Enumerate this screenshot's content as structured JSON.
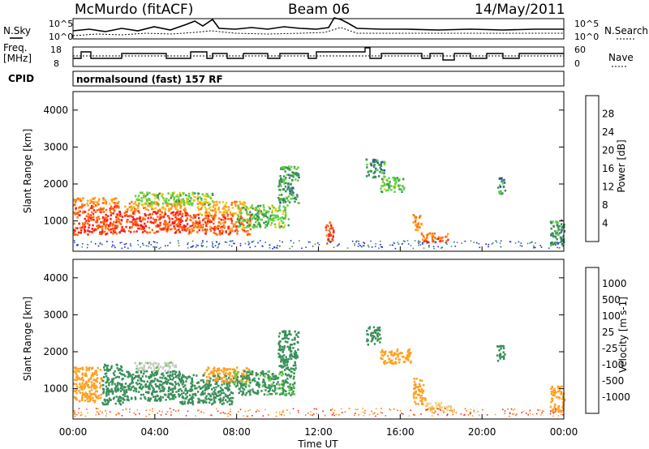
{
  "header": {
    "station": "McMurdo (fitACF)",
    "beam": "Beam 06",
    "date": "14/May/2011"
  },
  "top_panels": {
    "nsky_label": "N.Sky",
    "nsky_ticks": [
      "10^5",
      "10^0"
    ],
    "nsearch_label": "N.Search",
    "nsearch_ticks": [
      "10^5",
      "10^0"
    ],
    "freq_label_1": "Freq.",
    "freq_label_2": "[MHz]",
    "freq_ticks": [
      "18",
      "8"
    ],
    "nave_label": "Nave",
    "nave_ticks": [
      "60",
      "0"
    ],
    "cpid_label": "CPID",
    "cpid_text": "normalsound (fast) 157 RF"
  },
  "x_axis": {
    "label": "Time UT",
    "ticks": [
      "00:00",
      "04:00",
      "08:00",
      "12:00",
      "16:00",
      "20:00",
      "00:00"
    ]
  },
  "colors": {
    "power": [
      "#1a1aff",
      "#2a4fb0",
      "#3a8f5a",
      "#5fcf3f",
      "#e8d020",
      "#ffa020",
      "#ff6a10",
      "#ff1a1a"
    ],
    "velocity": [
      "#ff1a1a",
      "#ff6a10",
      "#ffa020",
      "#f0d080",
      "#c8c8c8",
      "#5fcf3f",
      "#3a8f5a",
      "#2a4fb0",
      "#1a1aff"
    ]
  },
  "chart_data": [
    {
      "type": "heatmap",
      "title": "Power",
      "ylabel": "Slant Range [km]",
      "ylim": [
        180,
        4500
      ],
      "yticks": [
        1000,
        2000,
        3000,
        4000
      ],
      "colorbar_label": "Power [dB]",
      "colorbar_ticks": [
        "4",
        "8",
        "12",
        "16",
        "20",
        "24",
        "28"
      ],
      "colorbar_range": [
        0,
        32
      ],
      "patches": [
        {
          "t0": 0.0,
          "t1": 2.2,
          "r0": 650,
          "r1": 1450,
          "v": 29
        },
        {
          "t0": 0.0,
          "t1": 2.2,
          "r0": 1450,
          "r1": 1650,
          "v": 24
        },
        {
          "t0": 2.2,
          "t1": 5.6,
          "r0": 700,
          "r1": 1300,
          "v": 30
        },
        {
          "t0": 2.5,
          "t1": 5.5,
          "r0": 1300,
          "r1": 1550,
          "v": 23
        },
        {
          "t0": 3.0,
          "t1": 6.8,
          "r0": 1450,
          "r1": 1800,
          "v": 14
        },
        {
          "t0": 5.6,
          "t1": 8.7,
          "r0": 650,
          "r1": 1200,
          "v": 28
        },
        {
          "t0": 6.0,
          "t1": 8.4,
          "r0": 1200,
          "r1": 1550,
          "v": 22
        },
        {
          "t0": 8.0,
          "t1": 10.5,
          "r0": 850,
          "r1": 1450,
          "v": 13
        },
        {
          "t0": 10.0,
          "t1": 11.0,
          "r0": 1500,
          "r1": 2500,
          "v": 10
        },
        {
          "t0": 12.3,
          "t1": 12.7,
          "r0": 400,
          "r1": 1000,
          "v": 28
        },
        {
          "t0": 14.3,
          "t1": 15.2,
          "r0": 2200,
          "r1": 2700,
          "v": 9
        },
        {
          "t0": 15.0,
          "t1": 16.2,
          "r0": 1800,
          "r1": 2200,
          "v": 13
        },
        {
          "t0": 16.6,
          "t1": 17.0,
          "r0": 700,
          "r1": 1200,
          "v": 25
        },
        {
          "t0": 17.0,
          "t1": 18.3,
          "r0": 450,
          "r1": 700,
          "v": 27
        },
        {
          "t0": 20.7,
          "t1": 21.1,
          "r0": 1750,
          "r1": 2200,
          "v": 9
        },
        {
          "t0": 23.3,
          "t1": 24.0,
          "r0": 350,
          "r1": 1100,
          "v": 9
        }
      ]
    },
    {
      "type": "heatmap",
      "title": "Velocity",
      "ylabel": "Slant Range [km]",
      "ylim": [
        180,
        4500
      ],
      "yticks": [
        1000,
        2000,
        3000,
        4000
      ],
      "colorbar_label": "Velocity [m s-1]",
      "colorbar_ticks": [
        "1000",
        "500",
        "100",
        "25",
        "-25",
        "-100",
        "-500",
        "-1000"
      ],
      "patches": [
        {
          "t0": 0.0,
          "t1": 1.4,
          "r0": 650,
          "r1": 1600,
          "v": -300
        },
        {
          "t0": 1.4,
          "t1": 2.4,
          "r0": 600,
          "r1": 1700,
          "v": 150
        },
        {
          "t0": 2.4,
          "t1": 5.2,
          "r0": 700,
          "r1": 1500,
          "v": 200
        },
        {
          "t0": 3.0,
          "t1": 5.0,
          "r0": 1500,
          "r1": 1750,
          "v": 10
        },
        {
          "t0": 5.2,
          "t1": 7.8,
          "r0": 600,
          "r1": 1400,
          "v": 180
        },
        {
          "t0": 6.4,
          "t1": 8.6,
          "r0": 1200,
          "r1": 1600,
          "v": -250
        },
        {
          "t0": 7.8,
          "t1": 10.8,
          "r0": 850,
          "r1": 1500,
          "v": 120
        },
        {
          "t0": 10.0,
          "t1": 11.0,
          "r0": 1500,
          "r1": 2600,
          "v": 200
        },
        {
          "t0": 14.3,
          "t1": 15.0,
          "r0": 2200,
          "r1": 2700,
          "v": 300
        },
        {
          "t0": 15.0,
          "t1": 16.5,
          "r0": 1700,
          "r1": 2100,
          "v": -300
        },
        {
          "t0": 16.6,
          "t1": 17.2,
          "r0": 600,
          "r1": 1300,
          "v": -300
        },
        {
          "t0": 17.2,
          "t1": 18.6,
          "r0": 400,
          "r1": 650,
          "v": -80
        },
        {
          "t0": 20.7,
          "t1": 21.1,
          "r0": 1750,
          "r1": 2200,
          "v": 150
        },
        {
          "t0": 23.3,
          "t1": 24.0,
          "r0": 400,
          "r1": 1100,
          "v": -300
        }
      ]
    }
  ]
}
